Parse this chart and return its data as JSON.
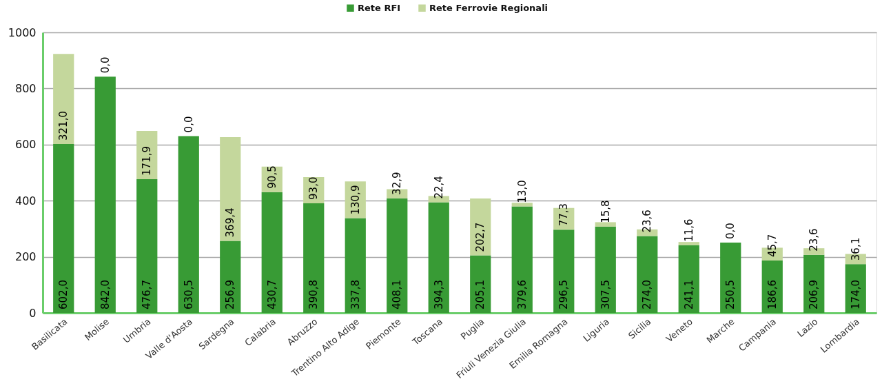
{
  "chart_data": {
    "type": "bar",
    "stacked": true,
    "categories": [
      "Basilicata",
      "Molise",
      "Umbria",
      "Valle d'Aosta",
      "Sardegna",
      "Calabria",
      "Abruzzo",
      "Trentino Alto Adige",
      "Piemonte",
      "Toscana",
      "Puglia",
      "Friuli Venezia Giulia",
      "Emilia Romagna",
      "Liguria",
      "Sicilia",
      "Veneto",
      "Marche",
      "Campania",
      "Lazio",
      "Lombardia"
    ],
    "series": [
      {
        "name": "Rete RFI",
        "color": "#389b35",
        "values": [
          602.0,
          842.0,
          476.7,
          630.5,
          256.9,
          430.7,
          390.8,
          337.8,
          408.1,
          394.3,
          205.1,
          379.6,
          296.5,
          307.5,
          274.0,
          241.1,
          250.5,
          186.6,
          206.9,
          174.0
        ],
        "value_labels": [
          "602,0",
          "842,0",
          "476,7",
          "630,5",
          "256,9",
          "430,7",
          "390,8",
          "337,8",
          "408,1",
          "394,3",
          "205,1",
          "379,6",
          "296,5",
          "307,5",
          "274,0",
          "241,1",
          "250,5",
          "186,6",
          "206,9",
          "174,0"
        ]
      },
      {
        "name": "Rete Ferrovie Regionali",
        "color": "#c4d79c",
        "values": [
          321.0,
          0.0,
          171.9,
          0.0,
          369.4,
          90.5,
          93.0,
          130.9,
          32.9,
          22.4,
          202.7,
          13.0,
          77.3,
          15.8,
          23.6,
          11.6,
          0.0,
          45.7,
          23.6,
          36.1
        ],
        "value_labels": [
          "321,0",
          "0,0",
          "171,9",
          "0,0",
          "369,4",
          "90,5",
          "93,0",
          "130,9",
          "32,9",
          "22,4",
          "202,7",
          "13,0",
          "77,3",
          "15,8",
          "23,6",
          "11,6",
          "0,0",
          "45,7",
          "23,6",
          "36,1"
        ]
      }
    ],
    "ylim": [
      0,
      1000
    ],
    "yticks": [
      0,
      200,
      400,
      600,
      800,
      1000
    ],
    "grid": "y",
    "legend": "top"
  }
}
